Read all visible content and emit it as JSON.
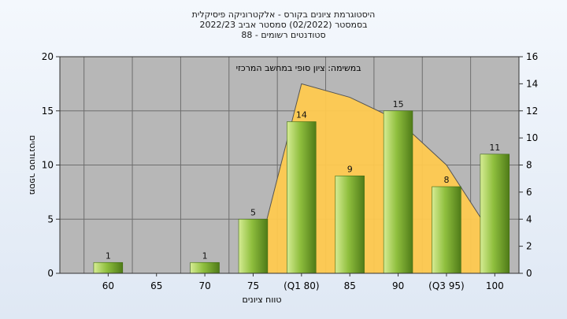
{
  "title_lines": [
    "היסטוגרמת ציונים בקורס - אלקטרוניקה פיסיקלית",
    "בסמסטר  (02/2022)  סמסטר אביב 2022/23",
    "סטודנטים רשומים - 88"
  ],
  "chart_data": {
    "type": "bar",
    "title": "היסטוגרמת ציונים בקורס - אלקטרוניקה פיסיקלית",
    "subtitle": "בסמסטר  (02/2022)  סמסטר אביב 2022/23 / סטודנטים רשומים - 88",
    "annotation": "במשימה: ציון סופי במחשב המרכזי",
    "xlabel": "טווח ציונים",
    "ylabel": "מספר סטודנטים",
    "categories": [
      "60",
      "65",
      "70",
      "75",
      "(Q1 80)",
      "85",
      "90",
      "(Q3 95)",
      "100"
    ],
    "series": [
      {
        "type": "bar",
        "values": [
          1,
          0,
          1,
          5,
          14,
          9,
          15,
          8,
          11
        ],
        "labels": [
          "1",
          "",
          "1",
          "5",
          "14",
          "9",
          "15",
          "8",
          "11"
        ]
      },
      {
        "type": "area",
        "axis": "right",
        "x": [
          "75",
          "(Q1 80)",
          "85",
          "90",
          "(Q3 95)",
          "100"
        ],
        "values": [
          0,
          14,
          13,
          11.3,
          8,
          2.5
        ]
      }
    ],
    "ylim_left": [
      0,
      20
    ],
    "yticks_left": [
      0,
      5,
      10,
      15,
      20
    ],
    "ylim_right": [
      0,
      16
    ],
    "yticks_right": [
      0,
      2,
      4,
      6,
      8,
      10,
      12,
      14,
      16
    ],
    "grid": true,
    "legend": "none"
  },
  "colors": {
    "plot_bg": "#b7b7b7",
    "grid": "#6e6e6e",
    "area_fill": "#fec94f",
    "area_edge": "#555555",
    "bar_light": "#d6ec94",
    "bar_mid": "#8fbf3e",
    "bar_dark": "#4f7b18"
  }
}
